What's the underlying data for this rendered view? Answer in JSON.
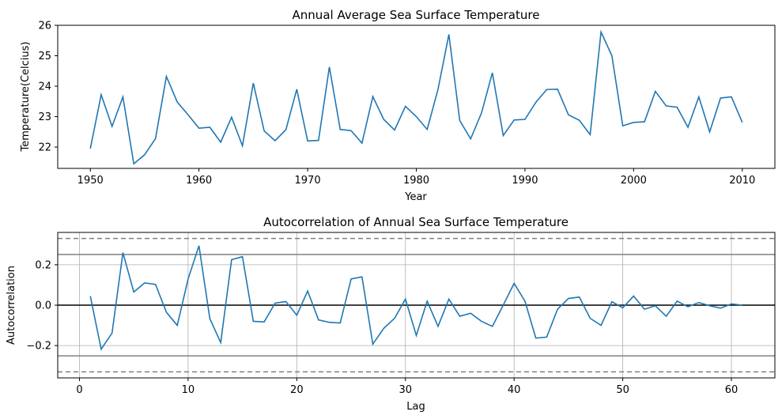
{
  "chart_data": [
    {
      "type": "line",
      "title": "Annual Average Sea Surface Temperature",
      "xlabel": "Year",
      "ylabel": "Temperature(Celcius)",
      "xlim": [
        1947,
        2013
      ],
      "ylim": [
        21.3,
        26.0
      ],
      "xticks": [
        1950,
        1960,
        1970,
        1980,
        1990,
        2000,
        2010
      ],
      "yticks": [
        22,
        23,
        24,
        25,
        26
      ],
      "grid": false,
      "series": [
        {
          "color": "#1f77b4",
          "x": [
            1950,
            1951,
            1952,
            1953,
            1954,
            1955,
            1956,
            1957,
            1958,
            1959,
            1960,
            1961,
            1962,
            1963,
            1964,
            1965,
            1966,
            1967,
            1968,
            1969,
            1970,
            1971,
            1972,
            1973,
            1974,
            1975,
            1976,
            1977,
            1978,
            1979,
            1980,
            1981,
            1982,
            1983,
            1984,
            1985,
            1986,
            1987,
            1988,
            1989,
            1990,
            1991,
            1992,
            1993,
            1994,
            1995,
            1996,
            1997,
            1998,
            1999,
            2000,
            2001,
            2002,
            2003,
            2004,
            2005,
            2006,
            2007,
            2008,
            2009,
            2010
          ],
          "values": [
            21.95,
            23.72,
            22.68,
            23.65,
            21.45,
            21.75,
            22.28,
            24.32,
            23.48,
            23.06,
            22.62,
            22.65,
            22.16,
            22.98,
            22.04,
            24.1,
            22.53,
            22.21,
            22.57,
            23.9,
            22.2,
            22.22,
            24.63,
            22.58,
            22.54,
            22.13,
            23.66,
            22.91,
            22.56,
            23.34,
            23.0,
            22.58,
            23.9,
            25.7,
            22.87,
            22.27,
            23.12,
            24.44,
            22.38,
            22.89,
            22.91,
            23.47,
            23.89,
            23.9,
            23.06,
            22.88,
            22.41,
            25.78,
            25.0,
            22.7,
            22.81,
            22.83,
            23.83,
            23.35,
            23.31,
            22.65,
            23.65,
            22.5,
            23.61,
            23.65,
            22.81
          ]
        }
      ]
    },
    {
      "type": "line",
      "title": "Autocorrelation of Annual Sea Surface Temperature",
      "xlabel": "Lag",
      "ylabel": "Autocorrelation",
      "xlim": [
        -2,
        64
      ],
      "ylim": [
        -0.36,
        0.36
      ],
      "xticks": [
        0,
        10,
        20,
        30,
        40,
        50,
        60
      ],
      "yticks": [
        -0.2,
        0.0,
        0.2
      ],
      "ytick_labels": [
        "−0.2",
        "0.0",
        "0.2"
      ],
      "grid": true,
      "reference_lines": {
        "zero": 0.0,
        "conf95": 0.251,
        "conf99": 0.33
      },
      "series": [
        {
          "color": "#1f77b4",
          "x": [
            1,
            2,
            3,
            4,
            5,
            6,
            7,
            8,
            9,
            10,
            11,
            12,
            13,
            14,
            15,
            16,
            17,
            18,
            19,
            20,
            21,
            22,
            23,
            24,
            25,
            26,
            27,
            28,
            29,
            30,
            31,
            32,
            33,
            34,
            35,
            36,
            37,
            38,
            39,
            40,
            41,
            42,
            43,
            44,
            45,
            46,
            47,
            48,
            49,
            50,
            51,
            52,
            53,
            54,
            55,
            56,
            57,
            58,
            59,
            60,
            61
          ],
          "values": [
            0.045,
            -0.218,
            -0.138,
            0.26,
            0.065,
            0.11,
            0.103,
            -0.035,
            -0.1,
            0.13,
            0.294,
            -0.067,
            -0.185,
            0.225,
            0.24,
            -0.08,
            -0.083,
            0.01,
            0.018,
            -0.05,
            0.07,
            -0.073,
            -0.085,
            -0.088,
            0.13,
            0.14,
            -0.193,
            -0.115,
            -0.065,
            0.03,
            -0.15,
            0.02,
            -0.105,
            0.03,
            -0.055,
            -0.04,
            -0.08,
            -0.105,
            0.0,
            0.108,
            0.02,
            -0.163,
            -0.158,
            -0.02,
            0.033,
            0.04,
            -0.065,
            -0.1,
            0.017,
            -0.013,
            0.045,
            -0.02,
            -0.003,
            -0.055,
            0.02,
            -0.008,
            0.013,
            -0.003,
            -0.015,
            0.006,
            0.0
          ]
        }
      ]
    }
  ]
}
